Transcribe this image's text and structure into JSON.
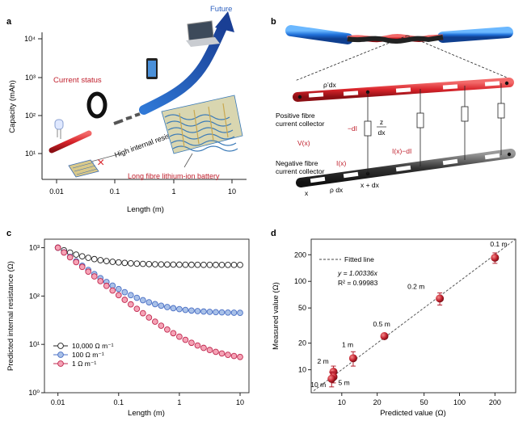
{
  "panels": {
    "a": {
      "label": "a",
      "ylabel": "Capacity (mAh)",
      "xlabel": "Length (m)",
      "yticks": [
        "10⁴",
        "10³",
        "10²",
        "10¹"
      ],
      "xticks": [
        "0.01",
        "0.1",
        "1",
        "10"
      ],
      "text_future": "Future",
      "text_current": "Current status",
      "text_resistance": "High internal resistance",
      "text_battery": "Long fibre lithium-ion battery"
    },
    "b": {
      "label": "b",
      "rho_top": "ρ’dx",
      "positive_label": [
        "Positive fibre",
        "current collector"
      ],
      "negative_label": [
        "Negative fibre",
        "current collector"
      ],
      "minus_di": "−dI",
      "z": "z",
      "dx": "dx",
      "v_label": "V(x)",
      "i_label": "I(x)",
      "i_minus": "I(x)−dI",
      "x_label": "x",
      "x_plus_dx": "x + dx",
      "rho_bottom": "ρ dx"
    },
    "c": {
      "label": "c",
      "ylabel": "Predicted internal resistance (Ω)",
      "xlabel": "Length (m)"
    },
    "d": {
      "label": "d",
      "ylabel": "Measured value (Ω)",
      "xlabel": "Predicted value (Ω)",
      "legend_fit": "Fitted line",
      "equation": "y = 1.00336x",
      "r2": "R² = 0.99983",
      "point_labels": [
        "0.1 m",
        "0.2 m",
        "0.5 m",
        "1 m",
        "2 m",
        "5 m",
        "10 m"
      ]
    }
  },
  "chart_data": [
    {
      "type": "scatter",
      "panel": "c",
      "title": "",
      "xlabel": "Length (m)",
      "ylabel": "Predicted internal resistance (Ω)",
      "xscale": "log",
      "yscale": "log",
      "xlim": [
        0.006,
        14
      ],
      "ylim": [
        1,
        1500
      ],
      "xticks": [
        "0.01",
        "0.1",
        "1",
        "10"
      ],
      "yticks": [
        "10⁰",
        "10¹",
        "10²",
        "10³"
      ],
      "legend_position": "bottom-left",
      "series": [
        {
          "name": "10,000 Ω m⁻¹",
          "color": "#222222",
          "fill": "#ffffff",
          "params": {
            "plateau": 440,
            "init": 1000,
            "k": 0.05
          }
        },
        {
          "name": "100 Ω m⁻¹",
          "color": "#4a6fc4",
          "fill": "#a9c1e8",
          "params": {
            "plateau": 44,
            "init": 1000,
            "k": 0.5
          }
        },
        {
          "name": "1 Ω m⁻¹",
          "color": "#c0284f",
          "fill": "#f5a3b6",
          "params": {
            "plateau": 4.5,
            "init": 1000,
            "k": 5
          }
        }
      ]
    },
    {
      "type": "scatter",
      "panel": "d",
      "title": "",
      "xlabel": "Predicted value (Ω)",
      "ylabel": "Measured value (Ω)",
      "xscale": "log",
      "yscale": "log",
      "xlim": [
        5.5,
        300
      ],
      "ylim": [
        5.5,
        300
      ],
      "xticks": [
        "10",
        "20",
        "50",
        "100",
        "200"
      ],
      "yticks": [
        "10",
        "20",
        "50",
        "100",
        "200"
      ],
      "fit": {
        "slope": 1.00336
      },
      "points": [
        {
          "label": "0.1 m",
          "x": 200,
          "y": 185,
          "err": 25
        },
        {
          "label": "0.2 m",
          "x": 68,
          "y": 64,
          "err": 10
        },
        {
          "label": "0.5 m",
          "x": 23,
          "y": 24,
          "err": 1.5
        },
        {
          "label": "1 m",
          "x": 12.5,
          "y": 13.5,
          "err": 2.5
        },
        {
          "label": "2 m",
          "x": 8.5,
          "y": 9.5,
          "err": 1.5
        },
        {
          "label": "5 m",
          "x": 8.5,
          "y": 8.3,
          "err": 1.2
        },
        {
          "label": "10 m",
          "x": 8.2,
          "y": 7.9,
          "err": 1.5
        }
      ],
      "colors": {
        "point": "#b3202e",
        "fit": "#444444"
      }
    }
  ]
}
